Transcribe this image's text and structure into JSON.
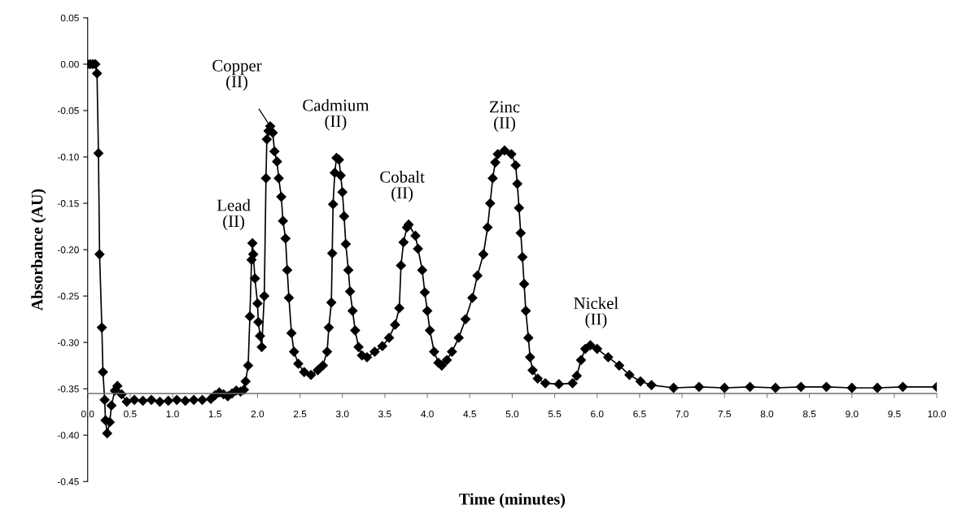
{
  "chart_data": {
    "type": "line",
    "xlabel": "Time (minutes)",
    "ylabel": "Absorbance (AU)",
    "x": [
      0.0,
      0.03,
      0.06,
      0.09,
      0.11,
      0.127,
      0.14,
      0.167,
      0.18,
      0.2,
      0.21,
      0.23,
      0.26,
      0.28,
      0.32,
      0.35,
      0.4,
      0.46,
      0.55,
      0.65,
      0.75,
      0.85,
      0.95,
      1.05,
      1.15,
      1.25,
      1.35,
      1.45,
      1.5,
      1.55,
      1.6,
      1.65,
      1.7,
      1.75,
      1.8,
      1.84,
      1.86,
      1.89,
      1.91,
      1.93,
      1.94,
      1.95,
      1.97,
      2.0,
      2.01,
      2.03,
      2.05,
      2.08,
      2.1,
      2.11,
      2.13,
      2.15,
      2.18,
      2.2,
      2.23,
      2.25,
      2.28,
      2.3,
      2.33,
      2.35,
      2.37,
      2.4,
      2.43,
      2.48,
      2.55,
      2.63,
      2.71,
      2.77,
      2.82,
      2.84,
      2.87,
      2.88,
      2.89,
      2.91,
      2.93,
      2.96,
      2.98,
      3.0,
      3.02,
      3.04,
      3.07,
      3.09,
      3.12,
      3.15,
      3.19,
      3.23,
      3.29,
      3.38,
      3.47,
      3.55,
      3.62,
      3.67,
      3.69,
      3.72,
      3.76,
      3.78,
      3.86,
      3.89,
      3.94,
      3.97,
      4.0,
      4.03,
      4.08,
      4.13,
      4.17,
      4.23,
      4.29,
      4.37,
      4.45,
      4.53,
      4.59,
      4.66,
      4.71,
      4.74,
      4.77,
      4.8,
      4.83,
      4.91,
      4.99,
      5.04,
      5.06,
      5.08,
      5.1,
      5.12,
      5.14,
      5.16,
      5.19,
      5.21,
      5.24,
      5.3,
      5.39,
      5.55,
      5.71,
      5.76,
      5.81,
      5.86,
      5.92,
      6.0,
      6.13,
      6.26,
      6.38,
      6.51,
      6.64,
      6.9,
      7.2,
      7.5,
      7.8,
      8.1,
      8.4,
      8.7,
      9.0,
      9.3,
      9.6,
      10.0
    ],
    "series": [
      {
        "color": "#000000",
        "values": [
          0.0,
          0.0,
          0.0,
          0.0,
          -0.01,
          -0.096,
          -0.205,
          -0.284,
          -0.332,
          -0.362,
          -0.384,
          -0.398,
          -0.386,
          -0.368,
          -0.352,
          -0.347,
          -0.356,
          -0.364,
          -0.362,
          -0.363,
          -0.362,
          -0.364,
          -0.363,
          -0.362,
          -0.363,
          -0.362,
          -0.362,
          -0.361,
          -0.357,
          -0.354,
          -0.356,
          -0.358,
          -0.355,
          -0.352,
          -0.353,
          -0.351,
          -0.342,
          -0.325,
          -0.272,
          -0.211,
          -0.193,
          -0.205,
          -0.231,
          -0.258,
          -0.278,
          -0.293,
          -0.305,
          -0.25,
          -0.123,
          -0.081,
          -0.072,
          -0.067,
          -0.074,
          -0.094,
          -0.105,
          -0.123,
          -0.143,
          -0.169,
          -0.188,
          -0.222,
          -0.252,
          -0.29,
          -0.31,
          -0.323,
          -0.332,
          -0.335,
          -0.33,
          -0.325,
          -0.31,
          -0.284,
          -0.257,
          -0.204,
          -0.151,
          -0.117,
          -0.101,
          -0.103,
          -0.12,
          -0.138,
          -0.164,
          -0.194,
          -0.222,
          -0.245,
          -0.266,
          -0.287,
          -0.305,
          -0.314,
          -0.316,
          -0.31,
          -0.304,
          -0.295,
          -0.281,
          -0.263,
          -0.217,
          -0.192,
          -0.176,
          -0.173,
          -0.185,
          -0.199,
          -0.222,
          -0.246,
          -0.266,
          -0.287,
          -0.31,
          -0.322,
          -0.325,
          -0.319,
          -0.31,
          -0.295,
          -0.275,
          -0.252,
          -0.228,
          -0.205,
          -0.176,
          -0.15,
          -0.123,
          -0.106,
          -0.097,
          -0.093,
          -0.097,
          -0.109,
          -0.129,
          -0.155,
          -0.182,
          -0.208,
          -0.237,
          -0.266,
          -0.295,
          -0.316,
          -0.33,
          -0.339,
          -0.344,
          -0.345,
          -0.344,
          -0.336,
          -0.319,
          -0.307,
          -0.303,
          -0.307,
          -0.316,
          -0.325,
          -0.335,
          -0.342,
          -0.346,
          -0.349,
          -0.348,
          -0.349,
          -0.348,
          -0.349,
          -0.348,
          -0.348,
          -0.349,
          -0.349,
          -0.348,
          -0.348
        ]
      }
    ],
    "xlim": [
      0,
      10
    ],
    "xticks": [
      {
        "value": 0,
        "label": "0.0"
      },
      {
        "value": 0.5,
        "label": "0.5"
      },
      {
        "value": 1,
        "label": "1.0"
      },
      {
        "value": 1.5,
        "label": "1.5"
      },
      {
        "value": 2,
        "label": "2.0"
      },
      {
        "value": 2.5,
        "label": "2.5"
      },
      {
        "value": 3,
        "label": "3.0"
      },
      {
        "value": 3.5,
        "label": "3.5"
      },
      {
        "value": 4,
        "label": "4.0"
      },
      {
        "value": 4.5,
        "label": "4.5"
      },
      {
        "value": 5,
        "label": "5.0"
      },
      {
        "value": 5.5,
        "label": "5.5"
      },
      {
        "value": 6,
        "label": "6.0"
      },
      {
        "value": 6.5,
        "label": "6.5"
      },
      {
        "value": 7,
        "label": "7.0"
      },
      {
        "value": 7.5,
        "label": "7.5"
      },
      {
        "value": 8,
        "label": "8.0"
      },
      {
        "value": 8.5,
        "label": "8.5"
      },
      {
        "value": 9,
        "label": "9.0"
      },
      {
        "value": 9.5,
        "label": "9.5"
      },
      {
        "value": 10,
        "label": "10.0"
      }
    ],
    "ylim": [
      -0.45,
      0.05
    ],
    "yticks": [
      {
        "value": 0.05,
        "label": "0.05"
      },
      {
        "value": 0,
        "label": "0.00"
      },
      {
        "value": -0.05,
        "label": "-0.05"
      },
      {
        "value": -0.1,
        "label": "-0.10"
      },
      {
        "value": -0.15,
        "label": "-0.15"
      },
      {
        "value": -0.2,
        "label": "-0.20"
      },
      {
        "value": -0.25,
        "label": "-0.25"
      },
      {
        "value": -0.3,
        "label": "-0.30"
      },
      {
        "value": -0.35,
        "label": "-0.35"
      },
      {
        "value": -0.4,
        "label": "-0.40"
      },
      {
        "value": -0.45,
        "label": "-0.45"
      }
    ],
    "ref_lines": [
      {
        "axis": "y",
        "value": -0.355,
        "color": "#808080"
      }
    ],
    "annotations": [
      {
        "text": "Lead\n(II)",
        "x": 1.94,
        "y": -0.193
      },
      {
        "text": "Copper\n(II)",
        "x": 2.15,
        "y": -0.067
      },
      {
        "text": "Cadmium\n(II)",
        "x": 2.93,
        "y": -0.101
      },
      {
        "text": "Cobalt\n(II)",
        "x": 3.78,
        "y": -0.173
      },
      {
        "text": "Zinc\n(II)",
        "x": 4.91,
        "y": -0.093
      },
      {
        "text": "Nickel\n(II)",
        "x": 5.92,
        "y": -0.303
      }
    ],
    "grid": false,
    "legend": false,
    "marker": "diamond",
    "line_style": "solid"
  }
}
